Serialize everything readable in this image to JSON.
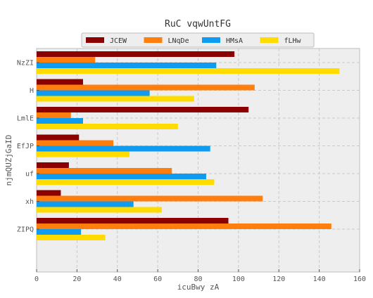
{
  "chart_data": {
    "type": "bar",
    "orientation": "horizontal",
    "title": "RuC vqwUntFG",
    "xlabel": "icuBwy zA",
    "ylabel": "njmQUZjGaID",
    "categories": [
      "NzZI",
      "H",
      "LmlE",
      "EfJP",
      "uf",
      "xh",
      "ZIPQ"
    ],
    "series": [
      {
        "name": "JCEW",
        "color": "#8b0000",
        "values": [
          98,
          23,
          105,
          21,
          16,
          12,
          95
        ]
      },
      {
        "name": "LNqDe",
        "color": "#ff7f0e",
        "values": [
          29,
          108,
          17,
          38,
          67,
          112,
          146
        ]
      },
      {
        "name": "HMsA",
        "color": "#0f9bf0",
        "values": [
          89,
          56,
          23,
          86,
          84,
          48,
          22
        ]
      },
      {
        "name": "fLHw",
        "color": "#ffdb00",
        "values": [
          150,
          78,
          70,
          46,
          88,
          62,
          34
        ]
      }
    ],
    "xlim": [
      0,
      160
    ],
    "xticks": [
      0,
      20,
      40,
      60,
      80,
      100,
      120,
      140,
      160
    ],
    "grid": true,
    "legend": "top-center"
  }
}
